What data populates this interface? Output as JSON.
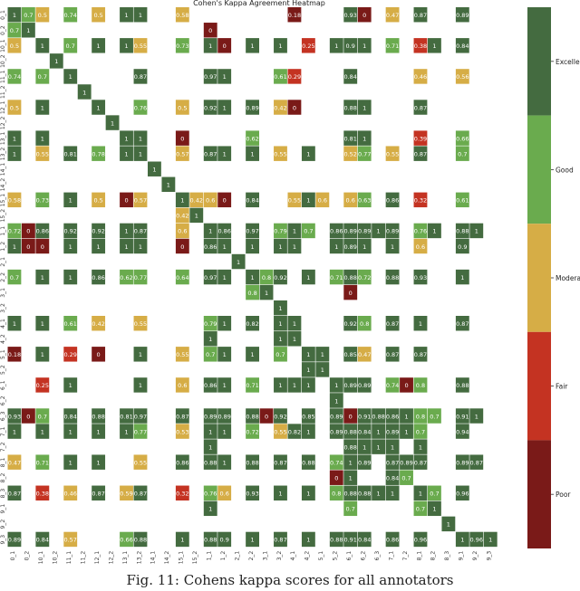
{
  "chart_data": {
    "type": "heatmap",
    "title": "Cohen's Kappa Agreement Heatmap",
    "labels": [
      "0_1",
      "0_2",
      "10_1",
      "10_2",
      "11_1",
      "11_2",
      "12_1",
      "12_2",
      "13_1",
      "13_2",
      "14_1",
      "14_2",
      "15_1",
      "15_2",
      "1_1",
      "1_2",
      "2_1",
      "2_2",
      "3_1",
      "3_2",
      "4_1",
      "4_2",
      "5_1",
      "5_2",
      "6_1",
      "6_2",
      "6_3",
      "7_1",
      "7_2",
      "8_1",
      "8_2",
      "8_3",
      "9_1",
      "9_2",
      "9_3"
    ],
    "colorbar": {
      "categories": [
        "Excellent",
        "Good",
        "Moderate",
        "Fair",
        "Poor"
      ],
      "colors": [
        "#446b40",
        "#6aab4e",
        "#d6ad46",
        "#c43322",
        "#7a1a18"
      ]
    },
    "cells": [
      [
        0,
        0,
        1
      ],
      [
        0,
        1,
        0.7
      ],
      [
        0,
        2,
        0.5
      ],
      [
        0,
        4,
        0.74
      ],
      [
        0,
        6,
        0.5
      ],
      [
        0,
        8,
        1
      ],
      [
        0,
        9,
        1
      ],
      [
        0,
        12,
        0.58
      ],
      [
        0,
        20,
        0.18
      ],
      [
        0,
        24,
        0.93
      ],
      [
        0,
        25,
        0
      ],
      [
        0,
        27,
        0.47
      ],
      [
        0,
        29,
        0.87
      ],
      [
        0,
        32,
        0.89
      ],
      [
        1,
        0,
        0.7
      ],
      [
        1,
        1,
        1
      ],
      [
        1,
        14,
        0
      ],
      [
        2,
        0,
        0.5
      ],
      [
        2,
        2,
        1
      ],
      [
        2,
        4,
        0.7
      ],
      [
        2,
        6,
        1
      ],
      [
        2,
        8,
        1
      ],
      [
        2,
        9,
        0.55
      ],
      [
        2,
        12,
        0.73
      ],
      [
        2,
        14,
        1
      ],
      [
        2,
        15,
        0
      ],
      [
        2,
        17,
        1
      ],
      [
        2,
        19,
        1
      ],
      [
        2,
        21,
        0.25
      ],
      [
        2,
        23,
        1
      ],
      [
        2,
        24,
        0.9
      ],
      [
        2,
        25,
        1
      ],
      [
        2,
        27,
        0.71
      ],
      [
        2,
        29,
        0.38
      ],
      [
        2,
        30,
        1
      ],
      [
        2,
        32,
        0.84
      ],
      [
        3,
        3,
        1
      ],
      [
        4,
        0,
        0.74
      ],
      [
        4,
        2,
        0.7
      ],
      [
        4,
        4,
        1
      ],
      [
        4,
        9,
        0.87
      ],
      [
        4,
        14,
        0.97
      ],
      [
        4,
        15,
        1
      ],
      [
        4,
        19,
        0.61
      ],
      [
        4,
        20,
        0.29
      ],
      [
        4,
        24,
        0.84
      ],
      [
        4,
        29,
        0.46
      ],
      [
        4,
        32,
        0.56
      ],
      [
        5,
        5,
        1
      ],
      [
        6,
        0,
        0.5
      ],
      [
        6,
        2,
        1
      ],
      [
        6,
        6,
        1
      ],
      [
        6,
        9,
        0.76
      ],
      [
        6,
        12,
        0.5
      ],
      [
        6,
        14,
        0.92
      ],
      [
        6,
        15,
        1
      ],
      [
        6,
        17,
        0.89
      ],
      [
        6,
        19,
        0.42
      ],
      [
        6,
        20,
        0
      ],
      [
        6,
        24,
        0.88
      ],
      [
        6,
        25,
        1
      ],
      [
        6,
        29,
        0.87
      ],
      [
        7,
        7,
        1
      ],
      [
        8,
        0,
        1
      ],
      [
        8,
        2,
        1
      ],
      [
        8,
        8,
        1
      ],
      [
        8,
        9,
        1
      ],
      [
        8,
        12,
        0
      ],
      [
        8,
        17,
        0.62
      ],
      [
        8,
        24,
        0.81
      ],
      [
        8,
        25,
        1
      ],
      [
        8,
        29,
        0.39
      ],
      [
        8,
        32,
        0.66
      ],
      [
        9,
        0,
        1
      ],
      [
        9,
        2,
        0.55
      ],
      [
        9,
        4,
        0.81
      ],
      [
        9,
        6,
        0.78
      ],
      [
        9,
        8,
        1
      ],
      [
        9,
        9,
        1
      ],
      [
        9,
        12,
        0.57
      ],
      [
        9,
        14,
        0.87
      ],
      [
        9,
        15,
        1
      ],
      [
        9,
        17,
        1
      ],
      [
        9,
        19,
        0.55
      ],
      [
        9,
        21,
        1
      ],
      [
        9,
        24,
        0.52
      ],
      [
        9,
        25,
        0.77
      ],
      [
        9,
        27,
        0.55
      ],
      [
        9,
        29,
        0.87
      ],
      [
        9,
        32,
        0.7
      ],
      [
        10,
        10,
        1
      ],
      [
        11,
        11,
        1
      ],
      [
        12,
        0,
        0.58
      ],
      [
        12,
        2,
        0.73
      ],
      [
        12,
        4,
        1
      ],
      [
        12,
        6,
        0.5
      ],
      [
        12,
        8,
        0
      ],
      [
        12,
        9,
        0.57
      ],
      [
        12,
        12,
        1
      ],
      [
        12,
        13,
        0.42
      ],
      [
        12,
        14,
        0.6
      ],
      [
        12,
        15,
        0
      ],
      [
        12,
        17,
        0.84
      ],
      [
        12,
        20,
        0.55
      ],
      [
        12,
        21,
        1
      ],
      [
        12,
        22,
        0.6
      ],
      [
        12,
        24,
        0.6
      ],
      [
        12,
        25,
        0.63
      ],
      [
        12,
        27,
        0.86
      ],
      [
        12,
        29,
        0.32
      ],
      [
        12,
        32,
        0.61
      ],
      [
        13,
        12,
        0.42
      ],
      [
        13,
        13,
        1
      ],
      [
        14,
        0,
        0.72
      ],
      [
        14,
        1,
        0
      ],
      [
        14,
        2,
        0.86
      ],
      [
        14,
        4,
        0.92
      ],
      [
        14,
        6,
        0.92
      ],
      [
        14,
        8,
        1
      ],
      [
        14,
        9,
        0.87
      ],
      [
        14,
        12,
        0.6
      ],
      [
        14,
        14,
        1
      ],
      [
        14,
        15,
        0.86
      ],
      [
        14,
        17,
        0.97
      ],
      [
        14,
        19,
        0.79
      ],
      [
        14,
        20,
        1
      ],
      [
        14,
        21,
        0.7
      ],
      [
        14,
        23,
        0.86
      ],
      [
        14,
        24,
        0.89
      ],
      [
        14,
        25,
        0.89
      ],
      [
        14,
        26,
        1
      ],
      [
        14,
        27,
        0.89
      ],
      [
        14,
        29,
        0.76
      ],
      [
        14,
        30,
        1
      ],
      [
        14,
        32,
        0.88
      ],
      [
        14,
        33,
        1
      ],
      [
        15,
        0,
        1
      ],
      [
        15,
        1,
        0
      ],
      [
        15,
        2,
        0
      ],
      [
        15,
        4,
        1
      ],
      [
        15,
        6,
        1
      ],
      [
        15,
        8,
        1
      ],
      [
        15,
        9,
        1
      ],
      [
        15,
        12,
        0
      ],
      [
        15,
        14,
        0.86
      ],
      [
        15,
        15,
        1
      ],
      [
        15,
        17,
        1
      ],
      [
        15,
        19,
        1
      ],
      [
        15,
        20,
        1
      ],
      [
        15,
        23,
        1
      ],
      [
        15,
        24,
        0.89
      ],
      [
        15,
        25,
        1
      ],
      [
        15,
        27,
        1
      ],
      [
        15,
        29,
        0.6
      ],
      [
        15,
        32,
        0.9
      ],
      [
        16,
        16,
        1
      ],
      [
        17,
        0,
        0.7
      ],
      [
        17,
        2,
        1
      ],
      [
        17,
        4,
        1
      ],
      [
        17,
        6,
        0.86
      ],
      [
        17,
        8,
        0.62
      ],
      [
        17,
        9,
        0.77
      ],
      [
        17,
        12,
        0.64
      ],
      [
        17,
        14,
        0.97
      ],
      [
        17,
        15,
        1
      ],
      [
        17,
        17,
        1
      ],
      [
        17,
        18,
        0.8
      ],
      [
        17,
        19,
        0.92
      ],
      [
        17,
        21,
        1
      ],
      [
        17,
        23,
        0.71
      ],
      [
        17,
        24,
        0.88
      ],
      [
        17,
        25,
        0.72
      ],
      [
        17,
        27,
        0.88
      ],
      [
        17,
        29,
        0.93
      ],
      [
        17,
        32,
        1
      ],
      [
        18,
        17,
        0.8
      ],
      [
        18,
        18,
        1
      ],
      [
        18,
        24,
        0
      ],
      [
        19,
        19,
        1
      ],
      [
        20,
        0,
        1
      ],
      [
        20,
        2,
        1
      ],
      [
        20,
        4,
        0.61
      ],
      [
        20,
        6,
        0.42
      ],
      [
        20,
        9,
        0.55
      ],
      [
        20,
        14,
        0.79
      ],
      [
        20,
        15,
        1
      ],
      [
        20,
        17,
        0.82
      ],
      [
        20,
        19,
        1
      ],
      [
        20,
        20,
        1
      ],
      [
        20,
        24,
        0.92
      ],
      [
        20,
        25,
        0.8
      ],
      [
        20,
        27,
        0.87
      ],
      [
        20,
        29,
        1
      ],
      [
        20,
        32,
        0.87
      ],
      [
        21,
        14,
        1
      ],
      [
        21,
        19,
        1
      ],
      [
        21,
        20,
        1
      ],
      [
        22,
        0,
        0.18
      ],
      [
        22,
        2,
        1
      ],
      [
        22,
        4,
        0.29
      ],
      [
        22,
        6,
        0
      ],
      [
        22,
        9,
        1
      ],
      [
        22,
        12,
        0.55
      ],
      [
        22,
        14,
        0.7
      ],
      [
        22,
        15,
        1
      ],
      [
        22,
        17,
        1
      ],
      [
        22,
        19,
        0.7
      ],
      [
        22,
        21,
        1
      ],
      [
        22,
        22,
        1
      ],
      [
        22,
        24,
        0.85
      ],
      [
        22,
        25,
        0.47
      ],
      [
        22,
        27,
        0.87
      ],
      [
        22,
        29,
        0.87
      ],
      [
        23,
        21,
        1
      ],
      [
        23,
        22,
        1
      ],
      [
        24,
        2,
        0.25
      ],
      [
        24,
        4,
        1
      ],
      [
        24,
        9,
        1
      ],
      [
        24,
        12,
        0.6
      ],
      [
        24,
        14,
        0.86
      ],
      [
        24,
        15,
        1
      ],
      [
        24,
        17,
        0.71
      ],
      [
        24,
        19,
        1
      ],
      [
        24,
        20,
        1
      ],
      [
        24,
        21,
        1
      ],
      [
        24,
        23,
        1
      ],
      [
        24,
        24,
        0.89
      ],
      [
        24,
        25,
        0.89
      ],
      [
        24,
        27,
        0.74
      ],
      [
        24,
        28,
        0
      ],
      [
        24,
        29,
        0.8
      ],
      [
        24,
        32,
        0.88
      ],
      [
        25,
        23,
        1
      ],
      [
        26,
        0,
        0.93
      ],
      [
        26,
        1,
        0
      ],
      [
        26,
        2,
        0.7
      ],
      [
        26,
        4,
        0.84
      ],
      [
        26,
        6,
        0.88
      ],
      [
        26,
        8,
        0.81
      ],
      [
        26,
        9,
        0.97
      ],
      [
        26,
        12,
        0.87
      ],
      [
        26,
        14,
        0.89
      ],
      [
        26,
        15,
        0.89
      ],
      [
        26,
        17,
        0.88
      ],
      [
        26,
        18,
        0
      ],
      [
        26,
        19,
        0.92
      ],
      [
        26,
        21,
        0.85
      ],
      [
        26,
        23,
        0.89
      ],
      [
        26,
        24,
        0
      ],
      [
        26,
        25,
        0.91
      ],
      [
        26,
        26,
        0.88
      ],
      [
        26,
        27,
        0.86
      ],
      [
        26,
        28,
        1
      ],
      [
        26,
        29,
        0.8
      ],
      [
        26,
        30,
        0.7
      ],
      [
        26,
        32,
        0.91
      ],
      [
        26,
        33,
        1
      ],
      [
        27,
        0,
        1
      ],
      [
        27,
        2,
        1
      ],
      [
        27,
        4,
        1
      ],
      [
        27,
        6,
        1
      ],
      [
        27,
        8,
        1
      ],
      [
        27,
        9,
        0.77
      ],
      [
        27,
        12,
        0.53
      ],
      [
        27,
        14,
        1
      ],
      [
        27,
        15,
        1
      ],
      [
        27,
        17,
        0.72
      ],
      [
        27,
        19,
        0.55
      ],
      [
        27,
        20,
        0.82
      ],
      [
        27,
        21,
        1
      ],
      [
        27,
        23,
        0.89
      ],
      [
        27,
        24,
        0.88
      ],
      [
        27,
        25,
        0.84
      ],
      [
        27,
        26,
        1
      ],
      [
        27,
        27,
        0.89
      ],
      [
        27,
        28,
        1
      ],
      [
        27,
        29,
        0.7
      ],
      [
        27,
        32,
        0.94
      ],
      [
        28,
        14,
        1
      ],
      [
        28,
        24,
        0.88
      ],
      [
        28,
        25,
        1
      ],
      [
        28,
        26,
        1
      ],
      [
        28,
        27,
        1
      ],
      [
        28,
        29,
        1
      ],
      [
        29,
        0,
        0.47
      ],
      [
        29,
        2,
        0.71
      ],
      [
        29,
        4,
        1
      ],
      [
        29,
        6,
        1
      ],
      [
        29,
        9,
        0.55
      ],
      [
        29,
        12,
        0.86
      ],
      [
        29,
        14,
        0.88
      ],
      [
        29,
        15,
        1
      ],
      [
        29,
        17,
        0.88
      ],
      [
        29,
        19,
        0.87
      ],
      [
        29,
        21,
        0.88
      ],
      [
        29,
        23,
        0.74
      ],
      [
        29,
        24,
        1
      ],
      [
        29,
        25,
        0.89
      ],
      [
        29,
        27,
        0.87
      ],
      [
        29,
        28,
        0.89
      ],
      [
        29,
        29,
        0.87
      ],
      [
        29,
        32,
        0.89
      ],
      [
        29,
        33,
        0.87
      ],
      [
        30,
        23,
        0
      ],
      [
        30,
        24,
        1
      ],
      [
        30,
        27,
        0.84
      ],
      [
        30,
        28,
        0.7
      ],
      [
        31,
        0,
        0.87
      ],
      [
        31,
        2,
        0.38
      ],
      [
        31,
        4,
        0.46
      ],
      [
        31,
        6,
        0.87
      ],
      [
        31,
        8,
        0.59
      ],
      [
        31,
        9,
        0.87
      ],
      [
        31,
        12,
        0.32
      ],
      [
        31,
        14,
        0.76
      ],
      [
        31,
        15,
        0.6
      ],
      [
        31,
        17,
        0.93
      ],
      [
        31,
        19,
        1
      ],
      [
        31,
        21,
        1
      ],
      [
        31,
        23,
        0.8
      ],
      [
        31,
        24,
        0.88
      ],
      [
        31,
        25,
        0.88
      ],
      [
        31,
        26,
        1
      ],
      [
        31,
        27,
        1
      ],
      [
        31,
        29,
        1
      ],
      [
        31,
        30,
        0.7
      ],
      [
        31,
        32,
        0.96
      ],
      [
        32,
        14,
        1
      ],
      [
        32,
        24,
        0.7
      ],
      [
        32,
        29,
        0.7
      ],
      [
        32,
        30,
        1
      ],
      [
        33,
        31,
        1
      ],
      [
        34,
        0,
        0.89
      ],
      [
        34,
        2,
        0.84
      ],
      [
        34,
        4,
        0.57
      ],
      [
        34,
        8,
        0.66
      ],
      [
        34,
        9,
        0.88
      ],
      [
        34,
        12,
        1
      ],
      [
        34,
        14,
        0.88
      ],
      [
        34,
        15,
        0.9
      ],
      [
        34,
        17,
        1
      ],
      [
        34,
        19,
        0.87
      ],
      [
        34,
        21,
        1
      ],
      [
        34,
        23,
        0.88
      ],
      [
        34,
        24,
        0.91
      ],
      [
        34,
        25,
        0.84
      ],
      [
        34,
        27,
        0.86
      ],
      [
        34,
        29,
        0.96
      ],
      [
        34,
        32,
        1
      ],
      [
        34,
        33,
        0.96
      ],
      [
        34,
        34,
        1
      ]
    ]
  },
  "caption": "Fig. 11: Cohens kappa scores for all annotators"
}
